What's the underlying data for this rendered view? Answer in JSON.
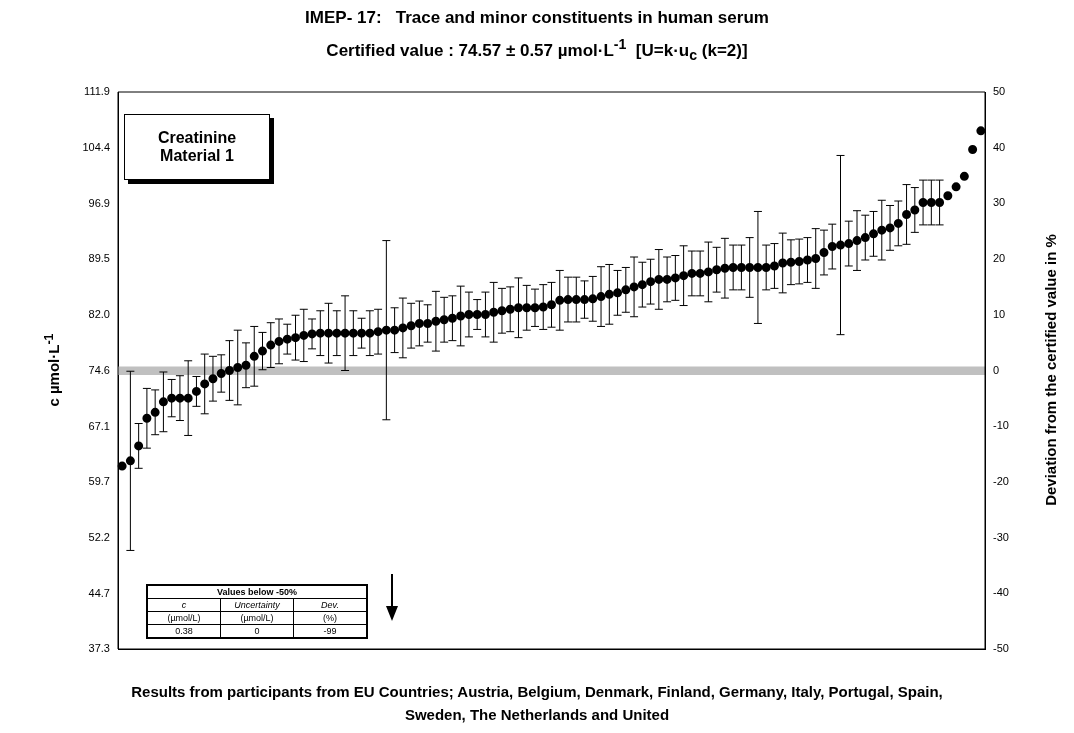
{
  "chart_data": {
    "type": "scatter",
    "title": "IMEP- 17:   Trace and minor constituents in human serum",
    "subtitle": "Certified value : 74.57 ± 0.57 µmol·L$^{-1}$  [U=k·u$_{c}$ (k=2)]",
    "ylabel": "c µmol·L$^{-1}$",
    "y2label": "Deviation from the certified value in %",
    "categories": [
      null,
      null,
      null,
      null,
      null,
      null,
      null,
      null,
      null,
      null,
      null,
      null,
      null,
      null,
      null,
      null,
      null,
      null,
      null,
      null,
      null,
      null,
      null,
      null,
      null,
      null,
      null,
      null,
      null,
      null,
      null,
      null,
      null,
      null,
      null,
      null,
      null,
      null,
      null,
      null,
      null,
      null,
      null,
      null,
      null,
      null,
      null,
      null,
      null,
      null,
      null,
      null,
      null,
      null,
      null,
      null,
      null,
      null,
      null,
      null,
      null,
      null,
      null,
      null,
      null,
      null,
      null,
      null,
      null,
      null,
      null,
      null,
      null,
      null,
      null,
      null,
      null,
      null,
      null,
      null,
      null,
      null,
      null,
      null,
      null,
      null,
      null,
      null,
      null,
      null,
      null,
      null,
      null,
      null,
      null,
      null,
      null,
      null,
      null,
      null,
      null,
      null,
      null,
      null,
      null
    ],
    "values": [
      61.8,
      62.5,
      64.5,
      68.2,
      69.0,
      70.4,
      70.9,
      70.9,
      70.9,
      71.8,
      72.8,
      73.5,
      74.2,
      74.6,
      75.0,
      75.3,
      76.5,
      77.2,
      78.0,
      78.5,
      78.8,
      79.0,
      79.3,
      79.5,
      79.6,
      79.6,
      79.6,
      79.6,
      79.6,
      79.6,
      79.6,
      79.8,
      80.0,
      80.0,
      80.3,
      80.6,
      80.9,
      80.9,
      81.2,
      81.4,
      81.6,
      81.9,
      82.1,
      82.1,
      82.1,
      82.4,
      82.6,
      82.8,
      83.0,
      83.0,
      83.0,
      83.1,
      83.4,
      84.0,
      84.1,
      84.1,
      84.1,
      84.2,
      84.5,
      84.8,
      85.0,
      85.4,
      85.8,
      86.1,
      86.5,
      86.8,
      86.8,
      87.0,
      87.3,
      87.6,
      87.6,
      87.8,
      88.1,
      88.3,
      88.4,
      88.4,
      88.4,
      88.4,
      88.4,
      88.6,
      89.0,
      89.1,
      89.2,
      89.4,
      89.6,
      90.4,
      91.2,
      91.4,
      91.6,
      92.0,
      92.4,
      92.9,
      93.4,
      93.7,
      94.3,
      95.5,
      96.1,
      97.1,
      97.1,
      97.1,
      98.0,
      99.2,
      100.6,
      104.2,
      106.7
    ],
    "errors": [
      null,
      12,
      3,
      4,
      3,
      4,
      2.5,
      3,
      5,
      2,
      4,
      3,
      2.5,
      4,
      5,
      3,
      4,
      2.5,
      3,
      3,
      2,
      3,
      3.5,
      2,
      3,
      4,
      3,
      5,
      3,
      2,
      3,
      3,
      12,
      3,
      4,
      3,
      3,
      2.5,
      4,
      3,
      3,
      4,
      3,
      2,
      3,
      4,
      3,
      3,
      4,
      3,
      2.5,
      3,
      3,
      4,
      3,
      3,
      2.5,
      3,
      4,
      4,
      3,
      3,
      4,
      3,
      3,
      4,
      3,
      3,
      4,
      3,
      3,
      4,
      3,
      4,
      3,
      3,
      4,
      7.5,
      3,
      3,
      4,
      3,
      3,
      3,
      4,
      3,
      3,
      12,
      3,
      4,
      3,
      3,
      4,
      3,
      3,
      4,
      3,
      3,
      3,
      3,
      null,
      null,
      null,
      null,
      null
    ],
    "color": "#000000",
    "marker": "circle",
    "ylim": [
      37.3,
      111.9
    ],
    "yticks": [
      37.3,
      44.7,
      52.2,
      59.7,
      67.1,
      74.6,
      {
        "value": 82,
        "label": "82.0"
      },
      89.5,
      96.9,
      104.4,
      111.9
    ],
    "y2lim": [
      -50,
      50
    ],
    "y2ticks": [
      -50,
      -40,
      -30,
      -20,
      -10,
      0,
      10,
      20,
      30,
      40,
      50
    ],
    "bands": [
      {
        "axis": "y",
        "from": 74.0,
        "to": 75.14,
        "color": "#c0c0c0"
      }
    ],
    "annotations": [
      "Creatinine Material 1",
      "Values below -50%",
      "c",
      "Uncertainty",
      "Dev.",
      "(µmol/L)",
      "(µmol/L)",
      "(%)",
      "0.38",
      "0",
      "-99",
      "Results from participants from EU Countries; Austria, Belgium, Denmark, Finland, Germany, Italy, Portugal, Spain, Sweden, The Netherlands and United"
    ]
  }
}
